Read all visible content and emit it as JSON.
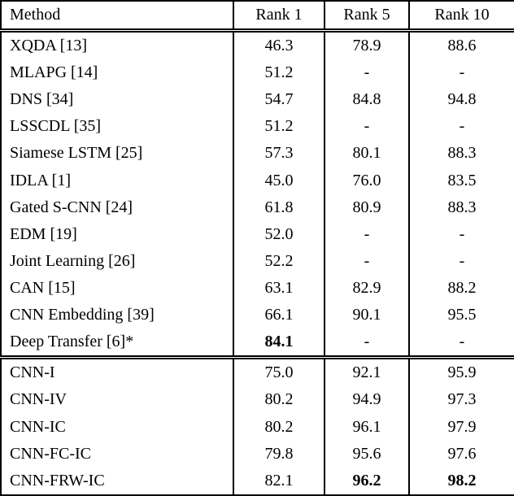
{
  "page": {
    "background": "#ffffff",
    "text_color": "#000000"
  },
  "table": {
    "headers": [
      "Method",
      "Rank 1",
      "Rank 5",
      "Rank 10"
    ],
    "rows": [
      {
        "method": "XQDA [13]",
        "rank1": "46.3",
        "rank5": "78.9",
        "rank10": "88.6"
      },
      {
        "method": "MLAPG [14]",
        "rank1": "51.2",
        "rank5": "-",
        "rank10": "-"
      },
      {
        "method": "DNS [34]",
        "rank1": "54.7",
        "rank5": "84.8",
        "rank10": "94.8"
      },
      {
        "method": "LSSCDL [35]",
        "rank1": "51.2",
        "rank5": "-",
        "rank10": "-"
      },
      {
        "method": "Siamese LSTM [25]",
        "rank1": "57.3",
        "rank5": "80.1",
        "rank10": "88.3"
      },
      {
        "method": "IDLA [1]",
        "rank1": "45.0",
        "rank5": "76.0",
        "rank10": "83.5"
      },
      {
        "method": "Gated S-CNN [24]",
        "rank1": "61.8",
        "rank5": "80.9",
        "rank10": "88.3"
      },
      {
        "method": "EDM [19]",
        "rank1": "52.0",
        "rank5": "-",
        "rank10": "-"
      },
      {
        "method": "Joint Learning [26]",
        "rank1": "52.2",
        "rank5": "-",
        "rank10": "-"
      },
      {
        "method": "CAN [15]",
        "rank1": "63.1",
        "rank5": "82.9",
        "rank10": "88.2"
      },
      {
        "method": "CNN Embedding [39]",
        "rank1": "66.1",
        "rank5": "90.1",
        "rank10": "95.5"
      },
      {
        "method": "Deep Transfer [6]*",
        "rank1": "84.1",
        "rank5": "-",
        "rank10": "-",
        "bold": [
          "rank1"
        ]
      },
      {
        "method": "CNN-I",
        "rank1": "75.0",
        "rank5": "92.1",
        "rank10": "95.9",
        "group_start": true
      },
      {
        "method": "CNN-IV",
        "rank1": "80.2",
        "rank5": "94.9",
        "rank10": "97.3"
      },
      {
        "method": "CNN-IC",
        "rank1": "80.2",
        "rank5": "96.1",
        "rank10": "97.9"
      },
      {
        "method": "CNN-FC-IC",
        "rank1": "79.8",
        "rank5": "95.6",
        "rank10": "97.6"
      },
      {
        "method": "CNN-FRW-IC",
        "rank1": "82.1",
        "rank5": "96.2",
        "rank10": "98.2",
        "bold": [
          "rank5",
          "rank10"
        ]
      }
    ]
  }
}
